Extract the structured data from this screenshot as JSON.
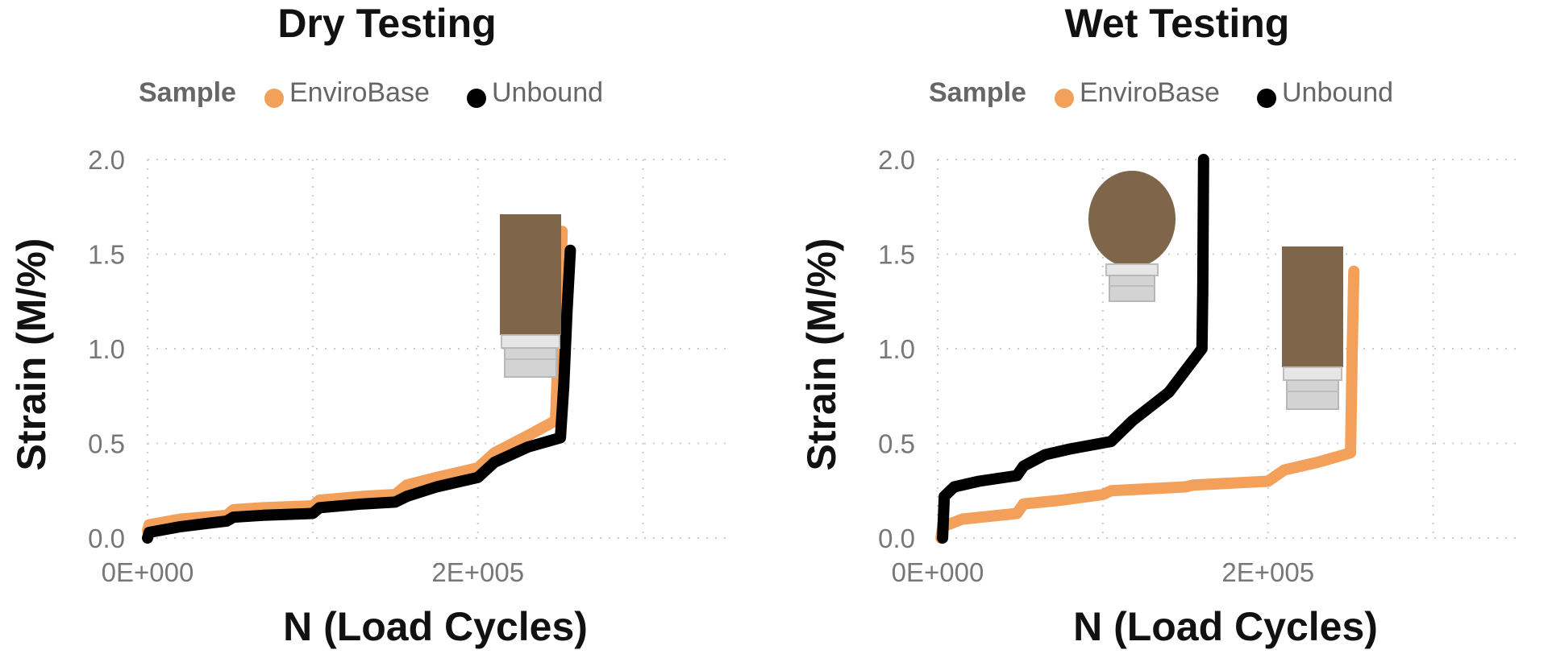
{
  "colors": {
    "enviro": "#f2a05a",
    "unbound": "#000000",
    "grid": "#cccccc",
    "tick_text": "#777777",
    "legend_text": "#666666",
    "sample_body": "#7a6248",
    "sample_cap": "#d5d5d5"
  },
  "chart_data": [
    {
      "type": "line",
      "title": "Dry Testing",
      "legend_title": "Sample",
      "legend_position": "top",
      "xlabel": "N (Load Cycles)",
      "ylabel": "Strain (M/%)",
      "xlim": [
        0,
        350000
      ],
      "ylim": [
        0,
        2
      ],
      "grid": true,
      "x_ticks": [
        {
          "value": 0,
          "label": "0E+000"
        },
        {
          "value": 200000,
          "label": "2E+005"
        }
      ],
      "y_ticks": [
        {
          "value": 0,
          "label": "0.0"
        },
        {
          "value": 0.5,
          "label": "0.5"
        },
        {
          "value": 1,
          "label": "1.0"
        },
        {
          "value": 1.5,
          "label": "1.5"
        },
        {
          "value": 2,
          "label": "2.0"
        }
      ],
      "sample_icon": "intact-cylinder-sample",
      "series": [
        {
          "name": "EnviroBase",
          "color_key": "enviro",
          "points": [
            [
              0,
              0.04
            ],
            [
              1000,
              0.07
            ],
            [
              20000,
              0.1
            ],
            [
              48000,
              0.12
            ],
            [
              52000,
              0.15
            ],
            [
              70000,
              0.16
            ],
            [
              100000,
              0.17
            ],
            [
              104000,
              0.2
            ],
            [
              130000,
              0.22
            ],
            [
              150000,
              0.23
            ],
            [
              157000,
              0.28
            ],
            [
              175000,
              0.32
            ],
            [
              200000,
              0.37
            ],
            [
              210000,
              0.45
            ],
            [
              230000,
              0.54
            ],
            [
              247000,
              0.62
            ],
            [
              250000,
              1.3
            ],
            [
              251000,
              1.62
            ]
          ]
        },
        {
          "name": "Unbound",
          "color_key": "unbound",
          "points": [
            [
              0,
              0.0
            ],
            [
              1000,
              0.03
            ],
            [
              20000,
              0.06
            ],
            [
              48000,
              0.09
            ],
            [
              52000,
              0.11
            ],
            [
              70000,
              0.12
            ],
            [
              100000,
              0.13
            ],
            [
              104000,
              0.16
            ],
            [
              130000,
              0.18
            ],
            [
              150000,
              0.19
            ],
            [
              157000,
              0.22
            ],
            [
              175000,
              0.27
            ],
            [
              200000,
              0.32
            ],
            [
              210000,
              0.4
            ],
            [
              230000,
              0.48
            ],
            [
              250000,
              0.53
            ],
            [
              252000,
              0.8
            ],
            [
              254000,
              1.2
            ],
            [
              256000,
              1.52
            ]
          ]
        }
      ]
    },
    {
      "type": "line",
      "title": "Wet Testing",
      "legend_title": "Sample",
      "legend_position": "top",
      "xlabel": "N (Load Cycles)",
      "ylabel": "Strain (M/%)",
      "xlim": [
        0,
        350000
      ],
      "ylim": [
        0,
        2
      ],
      "grid": true,
      "x_ticks": [
        {
          "value": 0,
          "label": "0E+000"
        },
        {
          "value": 200000,
          "label": "2E+005"
        }
      ],
      "y_ticks": [
        {
          "value": 0,
          "label": "0.0"
        },
        {
          "value": 0.5,
          "label": "0.5"
        },
        {
          "value": 1,
          "label": "1.0"
        },
        {
          "value": 1.5,
          "label": "1.5"
        },
        {
          "value": 2,
          "label": "2.0"
        }
      ],
      "sample_icons": [
        "failed-bulging-sample",
        "intact-cylinder-sample"
      ],
      "series": [
        {
          "name": "EnviroBase",
          "color_key": "enviro",
          "points": [
            [
              2000,
              0.0
            ],
            [
              3000,
              0.06
            ],
            [
              15000,
              0.1
            ],
            [
              48000,
              0.13
            ],
            [
              52000,
              0.18
            ],
            [
              75000,
              0.2
            ],
            [
              100000,
              0.23
            ],
            [
              105000,
              0.25
            ],
            [
              150000,
              0.27
            ],
            [
              155000,
              0.28
            ],
            [
              200000,
              0.3
            ],
            [
              210000,
              0.36
            ],
            [
              230000,
              0.4
            ],
            [
              250000,
              0.45
            ],
            [
              251000,
              1.0
            ],
            [
              252000,
              1.41
            ]
          ]
        },
        {
          "name": "Unbound",
          "color_key": "unbound",
          "points": [
            [
              3000,
              0.0
            ],
            [
              4000,
              0.22
            ],
            [
              10000,
              0.27
            ],
            [
              25000,
              0.3
            ],
            [
              48000,
              0.33
            ],
            [
              52000,
              0.38
            ],
            [
              65000,
              0.44
            ],
            [
              80000,
              0.47
            ],
            [
              105000,
              0.51
            ],
            [
              118000,
              0.62
            ],
            [
              140000,
              0.77
            ],
            [
              160000,
              1.0
            ],
            [
              160500,
              1.3
            ],
            [
              161000,
              2.0
            ]
          ]
        }
      ]
    }
  ]
}
